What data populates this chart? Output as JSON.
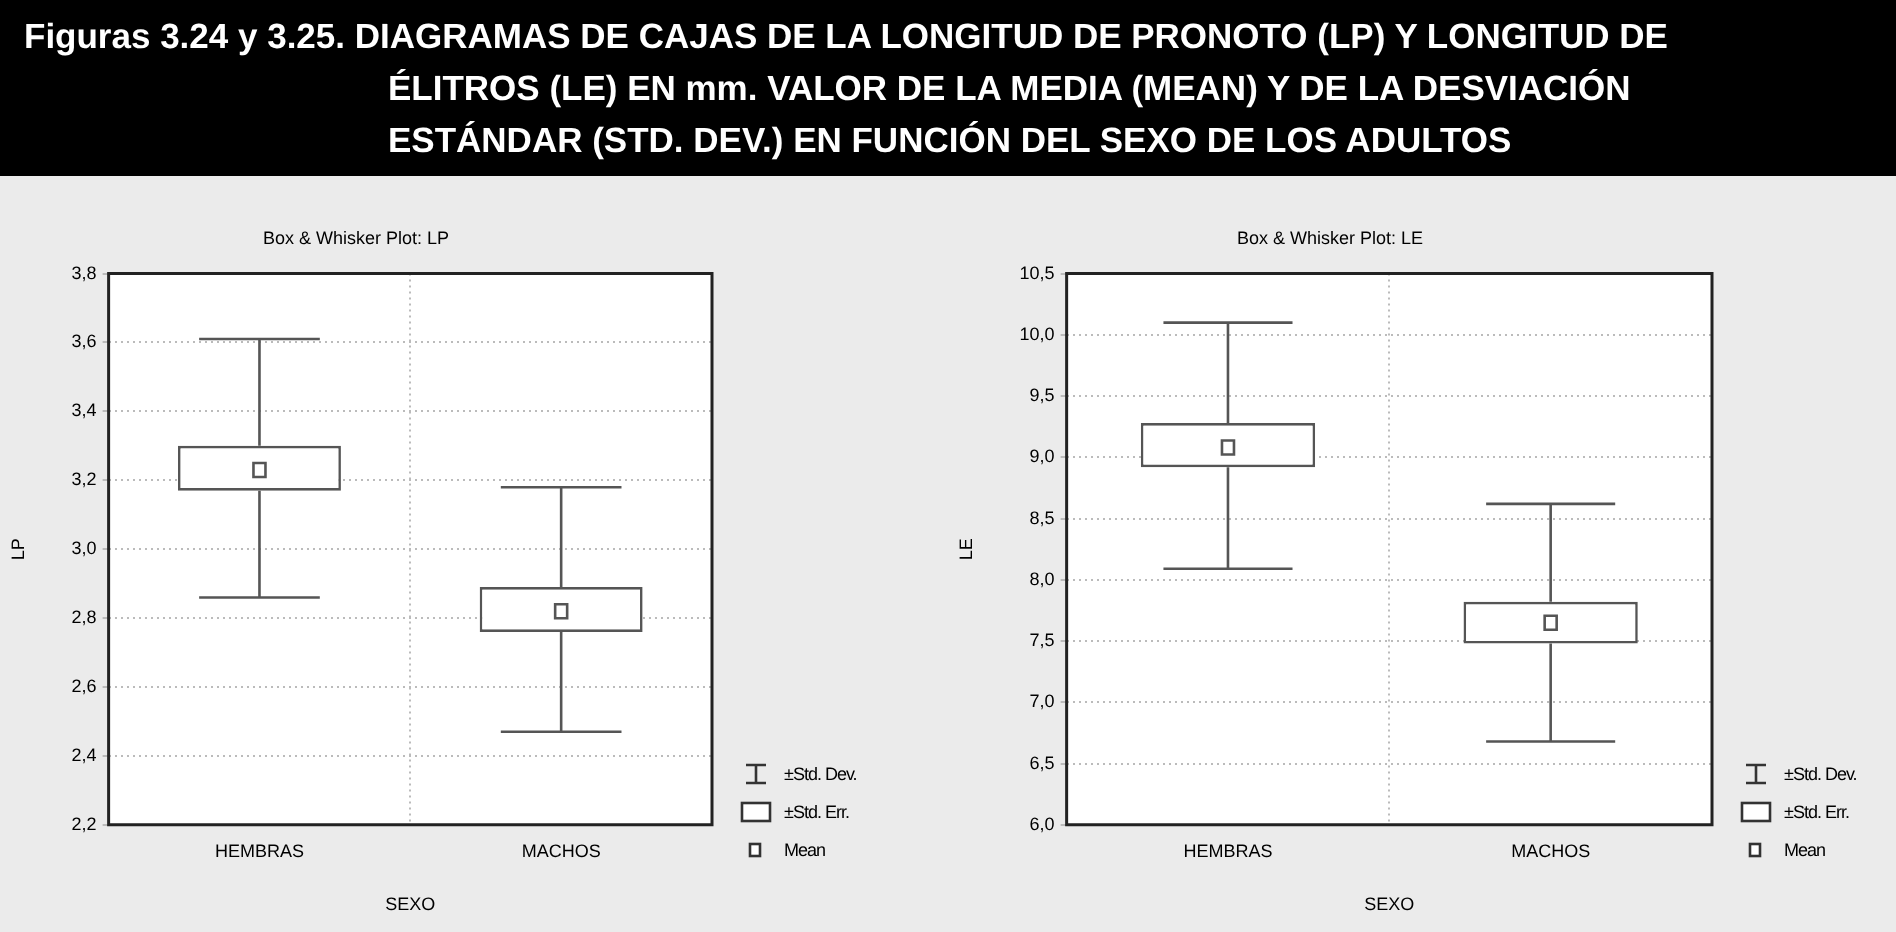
{
  "chart_data": [
    {
      "type": "other",
      "title": "Figuras 3.24 y 3.25. DIAGRAMAS DE CAJAS DE LA LONGITUD DE PRONOTO (LP) Y LONGITUD DE ÉLITROS (LE) EN mm. VALOR DE LA MEDIA (MEAN) Y DE LA DESVIACIÓN ESTÁNDAR (STD. DEV.) EN FUNCIÓN DEL SEXO DE LOS ADULTOS"
    },
    {
      "type": "box",
      "title": "Box & Whisker Plot: LP",
      "xlabel": "SEXO",
      "ylabel": "LP",
      "categories": [
        "HEMBRAS",
        "MACHOS"
      ],
      "boxes": [
        {
          "low": 2.86,
          "q1": 3.17,
          "mean": 3.23,
          "q3": 3.3,
          "high": 3.61
        },
        {
          "low": 2.47,
          "q1": 2.76,
          "mean": 2.82,
          "q3": 2.89,
          "high": 3.18
        }
      ],
      "ylim": [
        2.2,
        3.8
      ],
      "yticks": [
        {
          "value": 2.2,
          "label": "2,2"
        },
        {
          "value": 2.4,
          "label": "2,4"
        },
        {
          "value": 2.6,
          "label": "2,6"
        },
        {
          "value": 2.8,
          "label": "2,8"
        },
        {
          "value": 3.0,
          "label": "3,0"
        },
        {
          "value": 3.2,
          "label": "3,2"
        },
        {
          "value": 3.4,
          "label": "3,4"
        },
        {
          "value": 3.6,
          "label": "3,6"
        },
        {
          "value": 3.8,
          "label": "3,8"
        }
      ],
      "grid": true,
      "annotations": [
        "±Std. Dev.",
        "±Std. Err.",
        "Mean"
      ]
    },
    {
      "type": "box",
      "title": "Box & Whisker Plot: LE",
      "xlabel": "SEXO",
      "ylabel": "LE",
      "categories": [
        "HEMBRAS",
        "MACHOS"
      ],
      "boxes": [
        {
          "low": 8.09,
          "q1": 8.92,
          "mean": 9.08,
          "q3": 9.28,
          "high": 10.1
        },
        {
          "low": 6.68,
          "q1": 7.48,
          "mean": 7.65,
          "q3": 7.82,
          "high": 8.62
        }
      ],
      "ylim": [
        6.0,
        10.5
      ],
      "yticks": [
        {
          "value": 6.0,
          "label": "6,0"
        },
        {
          "value": 6.5,
          "label": "6,5"
        },
        {
          "value": 7.0,
          "label": "7,0"
        },
        {
          "value": 7.5,
          "label": "7,5"
        },
        {
          "value": 8.0,
          "label": "8,0"
        },
        {
          "value": 8.5,
          "label": "8,5"
        },
        {
          "value": 9.0,
          "label": "9,0"
        },
        {
          "value": 9.5,
          "label": "9,5"
        },
        {
          "value": 10.0,
          "label": "10,0"
        },
        {
          "value": 10.5,
          "label": "10,5"
        }
      ],
      "grid": true,
      "annotations": [
        "±Std. Dev.",
        "±Std. Err.",
        "Mean"
      ]
    }
  ]
}
